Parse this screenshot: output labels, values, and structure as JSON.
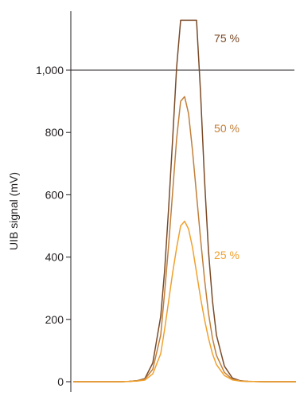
{
  "chart_data": {
    "type": "line",
    "title": "",
    "xlabel": "",
    "ylabel": "UIB signal (mV)",
    "ylim": [
      0,
      1160
    ],
    "yticks": [
      {
        "value": 0,
        "label": "0"
      },
      {
        "value": 200,
        "label": "200"
      },
      {
        "value": 400,
        "label": "400"
      },
      {
        "value": 600,
        "label": "600"
      },
      {
        "value": 800,
        "label": "800"
      },
      {
        "value": 1000,
        "label": "1,000"
      }
    ],
    "reference_line": {
      "value": 1000
    },
    "grid": false,
    "x": [
      0,
      20,
      40,
      60,
      70,
      80,
      90,
      100,
      110,
      115,
      120,
      125,
      130,
      135,
      140,
      145,
      150,
      155,
      160,
      165,
      170,
      175,
      180,
      190,
      200,
      210,
      220,
      240,
      260,
      280
    ],
    "series": [
      {
        "name": "75 %",
        "color": "#7a4a27",
        "values": [
          0,
          0,
          0,
          0,
          1,
          3,
          10,
          60,
          210,
          360,
          560,
          780,
          1010,
          1160,
          1160,
          1160,
          1160,
          1160,
          930,
          650,
          420,
          260,
          150,
          50,
          12,
          3,
          1,
          0,
          0,
          0
        ]
      },
      {
        "name": "50 %",
        "color": "#c17f3a",
        "values": [
          0,
          0,
          0,
          0,
          1,
          3,
          8,
          40,
          150,
          290,
          440,
          610,
          780,
          900,
          915,
          860,
          740,
          600,
          460,
          330,
          220,
          140,
          85,
          30,
          8,
          2,
          1,
          0,
          0,
          0
        ]
      },
      {
        "name": "25 %",
        "color": "#f0a12e",
        "values": [
          0,
          0,
          0,
          0,
          1,
          2,
          5,
          25,
          90,
          170,
          260,
          350,
          430,
          500,
          515,
          490,
          430,
          350,
          270,
          200,
          140,
          90,
          55,
          20,
          6,
          2,
          1,
          0,
          0,
          0
        ]
      }
    ]
  }
}
